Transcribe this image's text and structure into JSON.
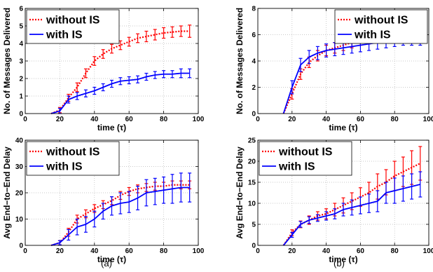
{
  "chart_data": [
    {
      "type": "line",
      "xlabel": "time (τ)",
      "ylabel": "No. of Messages Delivered",
      "xlim": [
        0,
        100
      ],
      "ylim": [
        0,
        6
      ],
      "xticks": [
        0,
        20,
        40,
        60,
        80,
        100
      ],
      "yticks": [
        0,
        1,
        2,
        3,
        4,
        5,
        6
      ],
      "grid": true,
      "legend": "top-left",
      "series": [
        {
          "name": "without IS",
          "color": "#ff0000",
          "style": "dotted",
          "x": [
            15,
            20,
            25,
            30,
            35,
            40,
            45,
            50,
            55,
            60,
            65,
            70,
            75,
            80,
            85,
            90,
            95
          ],
          "y": [
            0,
            0.2,
            0.9,
            1.5,
            2.3,
            3.0,
            3.4,
            3.7,
            3.9,
            4.1,
            4.3,
            4.4,
            4.5,
            4.6,
            4.65,
            4.7,
            4.7
          ],
          "err": [
            0,
            0.15,
            0.2,
            0.25,
            0.25,
            0.25,
            0.25,
            0.25,
            0.25,
            0.25,
            0.25,
            0.3,
            0.3,
            0.3,
            0.3,
            0.3,
            0.35
          ]
        },
        {
          "name": "with IS",
          "color": "#0000ff",
          "style": "solid",
          "x": [
            15,
            20,
            25,
            30,
            35,
            40,
            45,
            50,
            55,
            60,
            65,
            70,
            75,
            80,
            85,
            90,
            95
          ],
          "y": [
            0,
            0.15,
            0.8,
            1.0,
            1.15,
            1.3,
            1.5,
            1.7,
            1.85,
            1.9,
            1.95,
            2.1,
            2.2,
            2.25,
            2.25,
            2.3,
            2.3
          ],
          "err": [
            0,
            0.15,
            0.2,
            0.2,
            0.2,
            0.2,
            0.2,
            0.2,
            0.2,
            0.2,
            0.2,
            0.2,
            0.2,
            0.2,
            0.2,
            0.25,
            0.25
          ]
        }
      ]
    },
    {
      "type": "line",
      "xlabel": "time (τ)",
      "ylabel": "No. of Messages Delivered",
      "xlim": [
        0,
        100
      ],
      "ylim": [
        0,
        8
      ],
      "xticks": [
        0,
        20,
        40,
        60,
        80,
        100
      ],
      "yticks": [
        0,
        2,
        4,
        6,
        8
      ],
      "grid": true,
      "legend": "top-right",
      "series": [
        {
          "name": "without IS",
          "color": "#ff0000",
          "style": "dotted",
          "x": [
            15,
            20,
            25,
            30,
            35,
            40,
            45,
            50,
            55,
            60,
            65,
            70,
            75,
            80,
            85,
            90,
            95
          ],
          "y": [
            0,
            1.5,
            3.0,
            3.9,
            4.4,
            4.8,
            5.0,
            5.2,
            5.4,
            5.6,
            5.8,
            6.0,
            6.1,
            6.2,
            6.3,
            6.4,
            6.4
          ],
          "err": [
            0,
            0.4,
            0.4,
            0.4,
            0.4,
            0.4,
            0.4,
            0.4,
            0.4,
            0.4,
            0.5,
            0.5,
            0.5,
            0.5,
            0.5,
            0.5,
            0.5
          ]
        },
        {
          "name": "with IS",
          "color": "#0000ff",
          "style": "solid",
          "x": [
            15,
            20,
            25,
            30,
            35,
            40,
            45,
            50,
            55,
            60,
            65,
            70,
            75,
            80,
            85,
            90,
            95
          ],
          "y": [
            0,
            2.0,
            3.7,
            4.3,
            4.6,
            4.8,
            4.9,
            5.0,
            5.1,
            5.2,
            5.3,
            5.4,
            5.5,
            5.6,
            5.7,
            5.7,
            5.7
          ],
          "err": [
            0,
            0.5,
            0.5,
            0.5,
            0.5,
            0.5,
            0.5,
            0.5,
            0.5,
            0.5,
            0.5,
            0.5,
            0.5,
            0.5,
            0.5,
            0.5,
            0.5
          ]
        }
      ]
    },
    {
      "type": "line",
      "xlabel": "time (τ)",
      "ylabel": "Avg End−to−End Delay",
      "xlim": [
        0,
        100
      ],
      "ylim": [
        0,
        40
      ],
      "xticks": [
        0,
        20,
        40,
        60,
        80,
        100
      ],
      "yticks": [
        0,
        10,
        20,
        30,
        40
      ],
      "grid": true,
      "legend": "top-left",
      "series": [
        {
          "name": "without IS",
          "color": "#ff0000",
          "style": "dotted",
          "x": [
            15,
            20,
            25,
            30,
            35,
            40,
            45,
            50,
            55,
            60,
            65,
            70,
            75,
            80,
            85,
            90,
            95
          ],
          "y": [
            0,
            1,
            5,
            10,
            12,
            14,
            15.5,
            17,
            19,
            20.5,
            21.5,
            22,
            22.5,
            22.5,
            23,
            23,
            23
          ],
          "err": [
            0,
            0.8,
            1.5,
            1.5,
            1.5,
            1.5,
            1.5,
            1.5,
            1.5,
            1.5,
            1.5,
            1.5,
            1.5,
            1.5,
            1.5,
            1.5,
            1.5
          ]
        },
        {
          "name": "with IS",
          "color": "#0000ff",
          "style": "solid",
          "x": [
            15,
            20,
            25,
            30,
            35,
            40,
            45,
            50,
            55,
            60,
            65,
            70,
            75,
            80,
            85,
            90,
            95
          ],
          "y": [
            0,
            1,
            4,
            7,
            8,
            10,
            13,
            15,
            16,
            16.5,
            18,
            20,
            20.5,
            21,
            21.5,
            22,
            22
          ],
          "err": [
            0,
            0.8,
            2,
            3,
            3,
            3,
            3,
            3.5,
            4,
            4,
            4.5,
            5,
            5,
            5,
            5.5,
            5.5,
            5.5
          ]
        }
      ]
    },
    {
      "type": "line",
      "xlabel": "time (τ)",
      "ylabel": "Avg End−to−End Delay",
      "xlim": [
        0,
        100
      ],
      "ylim": [
        0,
        25
      ],
      "xticks": [
        0,
        20,
        40,
        60,
        80,
        100
      ],
      "yticks": [
        0,
        5,
        10,
        15,
        20,
        25
      ],
      "grid": true,
      "legend": "top-left",
      "series": [
        {
          "name": "without IS",
          "color": "#ff0000",
          "style": "dotted",
          "x": [
            15,
            20,
            25,
            30,
            35,
            40,
            45,
            50,
            55,
            60,
            65,
            70,
            75,
            80,
            85,
            90,
            95
          ],
          "y": [
            0,
            3,
            5,
            6,
            7,
            7.5,
            8.5,
            9.5,
            10.5,
            11.5,
            12.5,
            14,
            15,
            16.5,
            17.5,
            18.5,
            19.5
          ],
          "err": [
            0,
            0.7,
            0.8,
            1,
            1,
            1.2,
            1.5,
            1.8,
            2,
            2.2,
            2.5,
            3,
            3,
            3.5,
            3.5,
            4,
            4
          ]
        },
        {
          "name": "with IS",
          "color": "#0000ff",
          "style": "solid",
          "x": [
            15,
            20,
            25,
            30,
            35,
            40,
            45,
            50,
            55,
            60,
            65,
            70,
            75,
            80,
            85,
            90,
            95
          ],
          "y": [
            0,
            2.5,
            5,
            6,
            6.5,
            7,
            7.5,
            8.5,
            9,
            9.5,
            10,
            10.5,
            12.5,
            13,
            13.5,
            14,
            14.5
          ],
          "err": [
            0,
            0.6,
            0.7,
            0.8,
            0.8,
            1,
            1.2,
            1.5,
            1.8,
            2,
            2.2,
            2.5,
            2.5,
            3,
            3,
            3,
            3
          ]
        }
      ]
    }
  ],
  "panel_labels": [
    "(a)",
    "(b)"
  ]
}
